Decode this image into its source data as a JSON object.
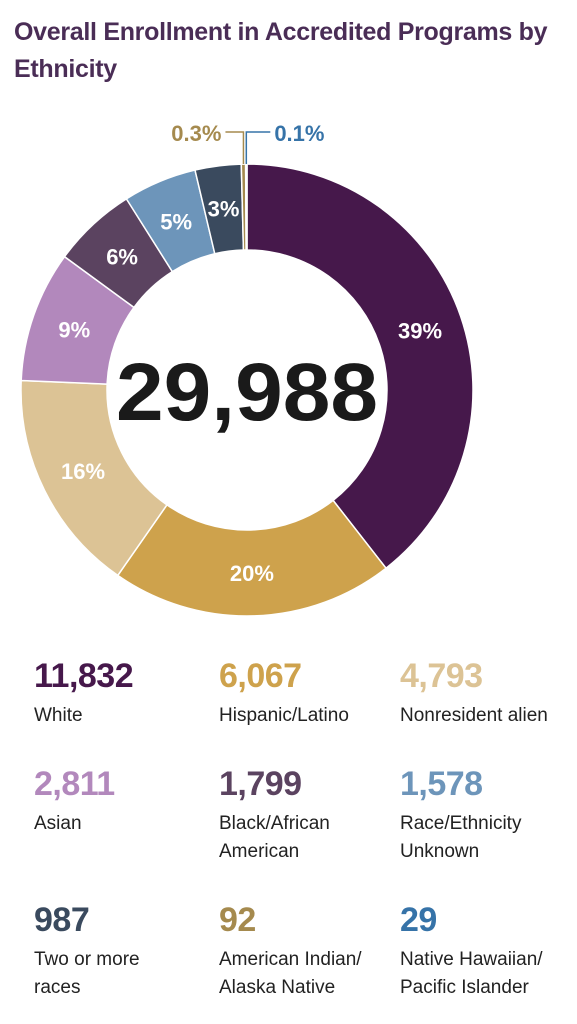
{
  "title": "Overall Enrollment in Accredited Programs by Ethnicity",
  "total_label": "29,988",
  "chart_data": {
    "type": "pie",
    "variant": "donut",
    "title": "Overall Enrollment in Accredited Programs by Ethnicity",
    "total": "29,988",
    "slices": [
      {
        "label": "White",
        "value": 11832,
        "count_text": "11,832",
        "percent_label": "39%",
        "color": "#46184b",
        "label_color": "#ffffff"
      },
      {
        "label": "Hispanic/Latino",
        "value": 6067,
        "count_text": "6,067",
        "percent_label": "20%",
        "color": "#cea24c",
        "label_color": "#ffffff"
      },
      {
        "label": "Nonresident alien",
        "value": 4793,
        "count_text": "4,793",
        "percent_label": "16%",
        "color": "#dcc395",
        "label_color": "#ffffff"
      },
      {
        "label": "Asian",
        "value": 2811,
        "count_text": "2,811",
        "percent_label": "9%",
        "color": "#b288bc",
        "label_color": "#ffffff"
      },
      {
        "label": "Black/African American",
        "value": 1799,
        "count_text": "1,799",
        "percent_label": "6%",
        "color": "#5b4360",
        "label_color": "#ffffff"
      },
      {
        "label": "Race/Ethnicity Unknown",
        "value": 1578,
        "count_text": "1,578",
        "percent_label": "5%",
        "color": "#6d95ba",
        "label_color": "#ffffff"
      },
      {
        "label": "Two or more races",
        "value": 987,
        "count_text": "987",
        "percent_label": "3%",
        "color": "#3a4a5e",
        "label_color": "#ffffff"
      },
      {
        "label": "American Indian/ Alaska Native",
        "value": 92,
        "count_text": "92",
        "percent_label": "0.3%",
        "color": "#a58a4e",
        "label_color": "#a58a4e"
      },
      {
        "label": "Native Hawaiian/ Pacific Islander",
        "value": 29,
        "count_text": "29",
        "percent_label": "0.1%",
        "color": "#3673a8",
        "label_color": "#3673a8"
      }
    ]
  },
  "stats": [
    {
      "number": "11,832",
      "label_lines": [
        "White"
      ],
      "color": "#46184b"
    },
    {
      "number": "6,067",
      "label_lines": [
        "Hispanic/Latino"
      ],
      "color": "#cea24c"
    },
    {
      "number": "4,793",
      "label_lines": [
        "Nonresident alien"
      ],
      "color": "#dcc395"
    },
    {
      "number": "2,811",
      "label_lines": [
        "Asian"
      ],
      "color": "#b288bc"
    },
    {
      "number": "1,799",
      "label_lines": [
        "Black/African",
        "American"
      ],
      "color": "#5b4360"
    },
    {
      "number": "1,578",
      "label_lines": [
        "Race/Ethnicity",
        "Unknown"
      ],
      "color": "#6d95ba"
    },
    {
      "number": "987",
      "label_lines": [
        "Two or more",
        "races"
      ],
      "color": "#3a4a5e"
    },
    {
      "number": "92",
      "label_lines": [
        "American Indian/",
        "Alaska Native"
      ],
      "color": "#a58a4e"
    },
    {
      "number": "29",
      "label_lines": [
        "Native Hawaiian/",
        "Pacific Islander"
      ],
      "color": "#3673a8"
    }
  ]
}
